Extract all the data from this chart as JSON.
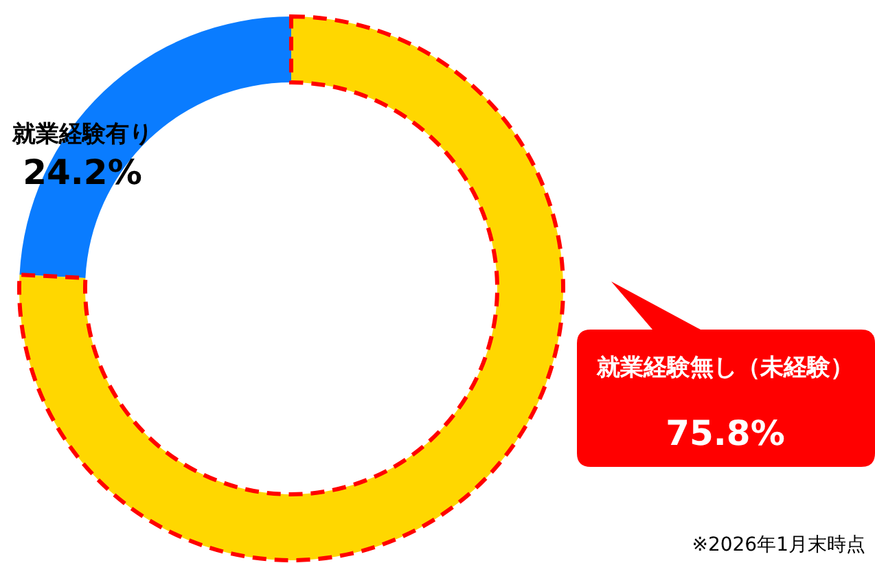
{
  "chart_data": {
    "type": "donut",
    "categories": [
      "就業経験有り",
      "就業経験無し（未経験）"
    ],
    "values": [
      24.2,
      75.8
    ],
    "colors": [
      "#0a7cff",
      "#ffd700"
    ],
    "value_labels": [
      "24.2%",
      "75.8%"
    ],
    "annotations": [
      "※2026年1月末時点"
    ]
  }
}
